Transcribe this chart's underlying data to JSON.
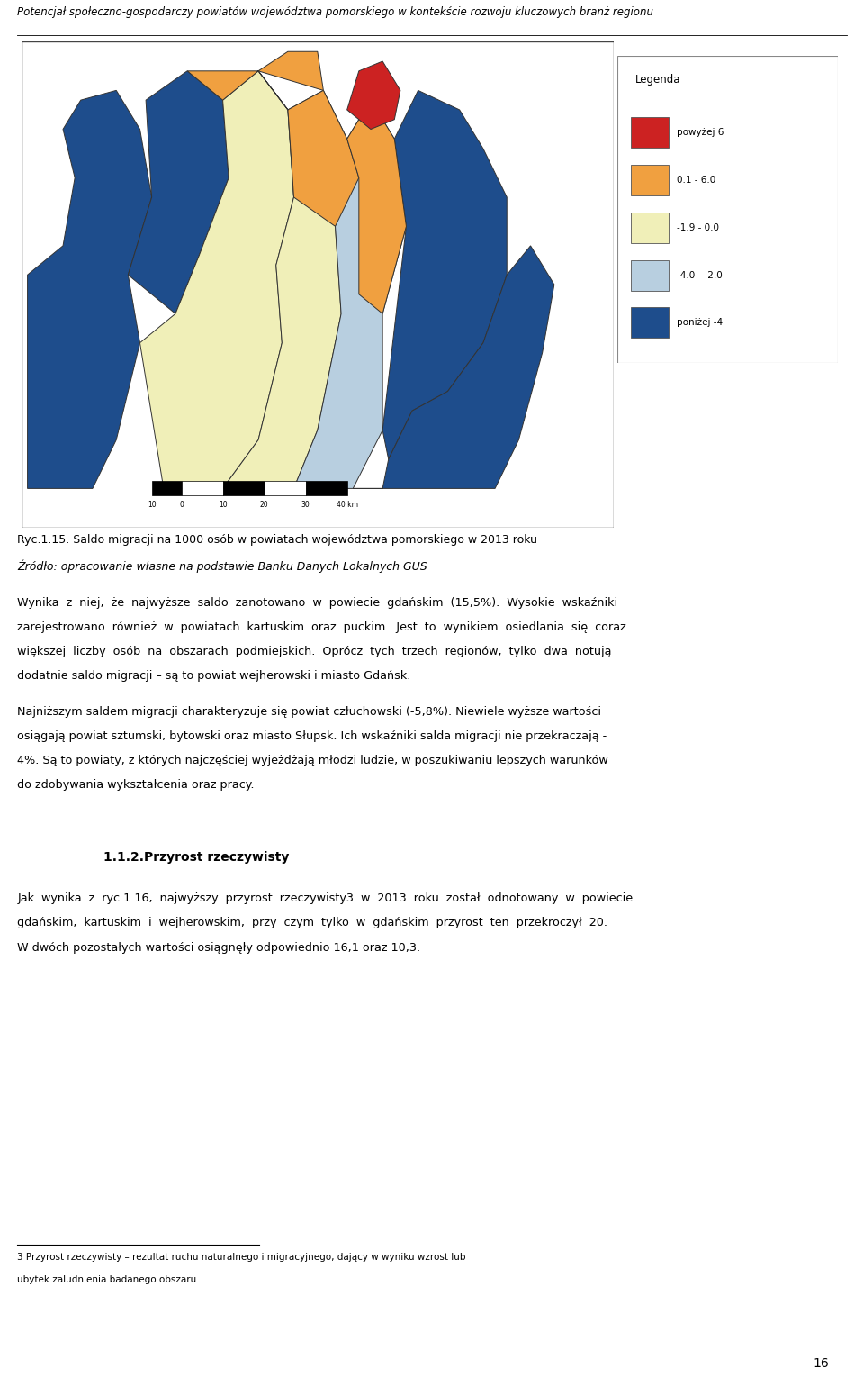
{
  "header_text": "Potencjał społeczno-gospodarczy powiatów województwa pomorskiego w kontekście rozwoju kluczowych branż regionu",
  "caption_line1": "Ryc.1.15. Saldo migracji na 1000 osób w powiatach województwa pomorskiego w 2013 roku",
  "caption_line2": "Źródło: opracowanie własne na podstawie Banku Danych Lokalnych GUS",
  "para1_parts": [
    {
      "text": "Wynika  z  niej,  że  najwyższe  saldo  zanotowano  w  powiecie  gdańskim  (15,5%).  Wysokie  wskaźniki zarejestrowano  również  w  powiatach  kartuskim  oraz  puckim.  Jest  to  wynikiem  osiedlania  się  coraz większej  liczby  osób  na  obszarach  podmiejskich.  Oprócz  tych  trzech  regionów,  tylko  dwa  notują dodatnie saldo migracji – są to powiat wejherowski i miasto Gdańsk.",
      "bold": false
    }
  ],
  "para2_parts": [
    {
      "text": "Najniższym saldem migracji charakteryzuje się powiat człuchowski (-5,8%). Niewiele wyższe wartości osiągają powiat sztumski, bytowski oraz miasto Słupsk. Ich wskaźniki salda migracji nie przekraczają -4%. Są to powiaty, z których najczęściej wyjeżdżają młodzi ludzie, w poszukiwaniu lepszych warunków do zdobywania wykształcenia oraz pracy.",
      "bold": false
    }
  ],
  "section_title": "1.1.2.Przyrost rzeczywisty",
  "para3_parts": [
    {
      "text": "Jak  wynika  z  ryc.1.16,  najwyższy  przyrost  rzeczywisty3  w  2013  roku  został  odnotowany  w  powiecie gdańskim,  kartuskim  i  wejherowskim,  przy  czym  tylko  w  gdańskim  przyrost  ten  przekroczył  20. W dwóch pozostałych wartości osiągnęły odpowiednio 16,1 oraz 10,3.",
      "bold": false
    }
  ],
  "footnote_line1": "3 Przyrost rzeczywisty – rezultat ruchu naturalnego i migracyjnego, dający w wyniku wzrost lub",
  "footnote_line2": "ubytek zaludnienia badanego obszaru",
  "page_number": "16",
  "bg_color": "#ffffff",
  "text_color": "#000000",
  "red_color": "#cc2222",
  "orange_color": "#f0a040",
  "yellow_color": "#f0efb8",
  "light_blue_color": "#b8cfe0",
  "dark_blue_color": "#1e4d8c",
  "sea_color": "#a8c4d8",
  "legend_items": [
    {
      "color": "#cc2222",
      "label": "powyżej 6"
    },
    {
      "color": "#f0a040",
      "label": "0.1 - 6.0"
    },
    {
      "color": "#f0efb8",
      "label": "-1.9 - 0.0"
    },
    {
      "color": "#b8cfe0",
      "label": "-4.0 - -2.0"
    },
    {
      "color": "#1e4d8c",
      "label": "poniżej -4"
    }
  ]
}
